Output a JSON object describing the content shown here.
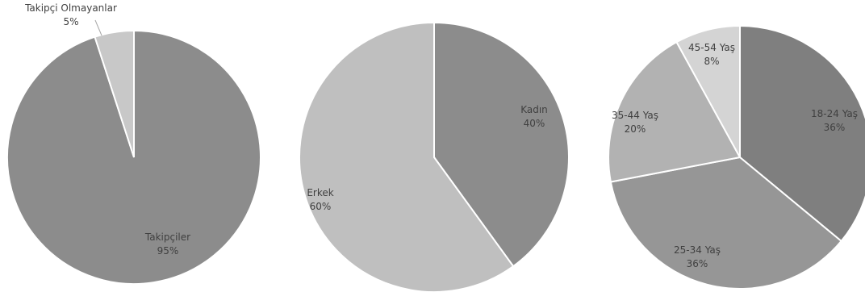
{
  "chart_data": [
    {
      "type": "pie",
      "title": "",
      "slices": [
        {
          "label": "Takipçiler",
          "value": 95,
          "value_label": "95%",
          "color": "#8c8c8c"
        },
        {
          "label": "Takipçi Olmayanlar",
          "value": 5,
          "value_label": "5%",
          "color": "#c8c8c8"
        }
      ]
    },
    {
      "type": "pie",
      "title": "",
      "slices": [
        {
          "label": "Kadın",
          "value": 40,
          "value_label": "40%",
          "color": "#8c8c8c"
        },
        {
          "label": "Erkek",
          "value": 60,
          "value_label": "60%",
          "color": "#bfbfbf"
        }
      ]
    },
    {
      "type": "pie",
      "title": "",
      "slices": [
        {
          "label": "18-24 Yaş",
          "value": 36,
          "value_label": "36%",
          "color": "#7f7f7f"
        },
        {
          "label": "25-34 Yaş",
          "value": 36,
          "value_label": "36%",
          "color": "#969696"
        },
        {
          "label": "35-44 Yaş",
          "value": 20,
          "value_label": "20%",
          "color": "#b2b2b2"
        },
        {
          "label": "45-54 Yaş",
          "value": 8,
          "value_label": "8%",
          "color": "#d4d4d4"
        }
      ]
    }
  ]
}
